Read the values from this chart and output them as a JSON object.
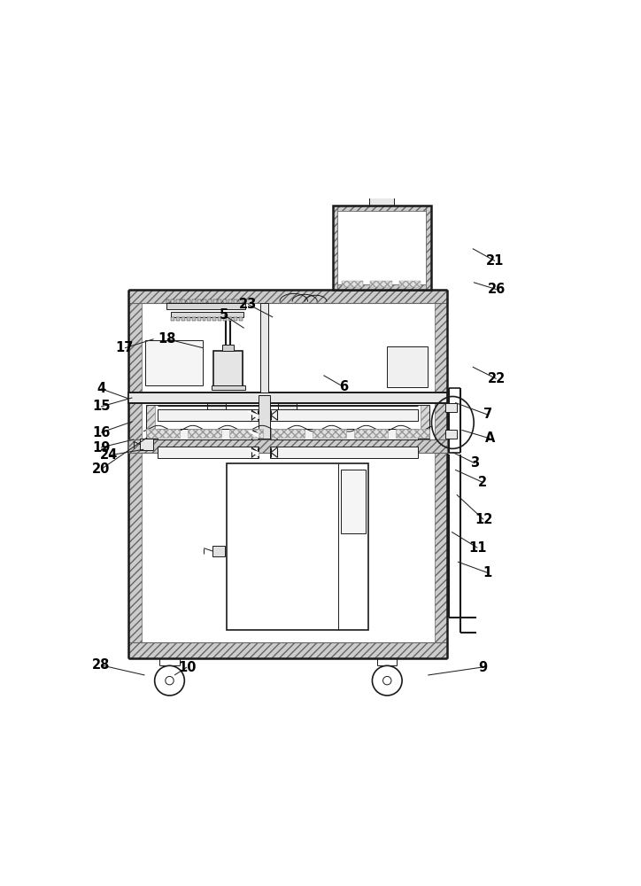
{
  "fig_width": 7.24,
  "fig_height": 10.0,
  "dpi": 100,
  "line_color": "#1a1a1a",
  "hatch_gray": "#cccccc",
  "label_positions": {
    "1": [
      0.82,
      0.248,
      0.76,
      0.27
    ],
    "2": [
      0.81,
      0.43,
      0.755,
      0.455
    ],
    "3": [
      0.795,
      0.468,
      0.75,
      0.49
    ],
    "4": [
      0.042,
      0.618,
      0.098,
      0.598
    ],
    "5": [
      0.29,
      0.766,
      0.33,
      0.74
    ],
    "6": [
      0.53,
      0.622,
      0.49,
      0.645
    ],
    "7": [
      0.82,
      0.566,
      0.755,
      0.59
    ],
    "9": [
      0.81,
      0.058,
      0.7,
      0.042
    ],
    "10": [
      0.215,
      0.058,
      0.19,
      0.042
    ],
    "11": [
      0.8,
      0.298,
      0.748,
      0.33
    ],
    "12": [
      0.812,
      0.355,
      0.758,
      0.405
    ],
    "15": [
      0.042,
      0.582,
      0.105,
      0.6
    ],
    "16": [
      0.042,
      0.53,
      0.105,
      0.552
    ],
    "17": [
      0.09,
      0.7,
      0.148,
      0.718
    ],
    "18": [
      0.175,
      0.718,
      0.248,
      0.7
    ],
    "19": [
      0.042,
      0.5,
      0.108,
      0.516
    ],
    "20": [
      0.042,
      0.456,
      0.135,
      0.52
    ],
    "21": [
      0.835,
      0.875,
      0.79,
      0.9
    ],
    "22": [
      0.838,
      0.638,
      0.79,
      0.662
    ],
    "23": [
      0.338,
      0.788,
      0.388,
      0.762
    ],
    "24": [
      0.058,
      0.484,
      0.128,
      0.496
    ],
    "26": [
      0.838,
      0.818,
      0.792,
      0.832
    ],
    "28": [
      0.042,
      0.062,
      0.13,
      0.042
    ],
    "A": [
      0.825,
      0.518,
      0.768,
      0.535
    ]
  }
}
